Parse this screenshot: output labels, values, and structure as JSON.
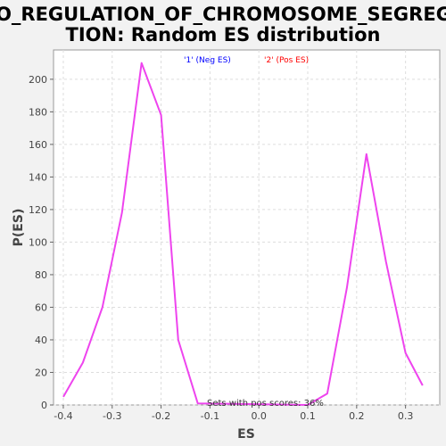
{
  "chart_data": {
    "type": "line",
    "title_line1": "GO_REGULATION_OF_CHROMOSOME_SEGREGA",
    "title_line2": "TION: Random ES distribution",
    "xlabel": "ES",
    "ylabel": "P(ES)",
    "xlim": [
      -0.42,
      0.37
    ],
    "ylim": [
      0,
      218
    ],
    "xticks": [
      "-0.4",
      "-0.3",
      "-0.2",
      "-0.1",
      "0.0",
      "0.1",
      "0.2",
      "0.3"
    ],
    "xtick_values": [
      -0.4,
      -0.3,
      -0.2,
      -0.1,
      0.0,
      0.1,
      0.2,
      0.3
    ],
    "yticks": [
      "0",
      "20",
      "40",
      "60",
      "80",
      "100",
      "120",
      "140",
      "160",
      "180",
      "200"
    ],
    "ytick_values": [
      0,
      20,
      40,
      60,
      80,
      100,
      120,
      140,
      160,
      180,
      200
    ],
    "grid": true,
    "legend": [
      {
        "label": "'1' (Neg ES)",
        "color": "#0000ff"
      },
      {
        "label": "'2' (Pos ES)",
        "color": "#ff0000"
      }
    ],
    "annotation": "Sets with pos scores: 36%",
    "line_color": "#ee44ee",
    "series": [
      {
        "x": [
          -0.4,
          -0.36,
          -0.32,
          -0.28,
          -0.24,
          -0.2,
          -0.165,
          -0.125,
          0.1,
          0.14,
          0.18,
          0.22,
          0.26,
          0.3,
          0.335
        ],
        "values": [
          5,
          26,
          60,
          118,
          210,
          178,
          40,
          1,
          0,
          7,
          72,
          154,
          88,
          32,
          12
        ]
      }
    ]
  }
}
